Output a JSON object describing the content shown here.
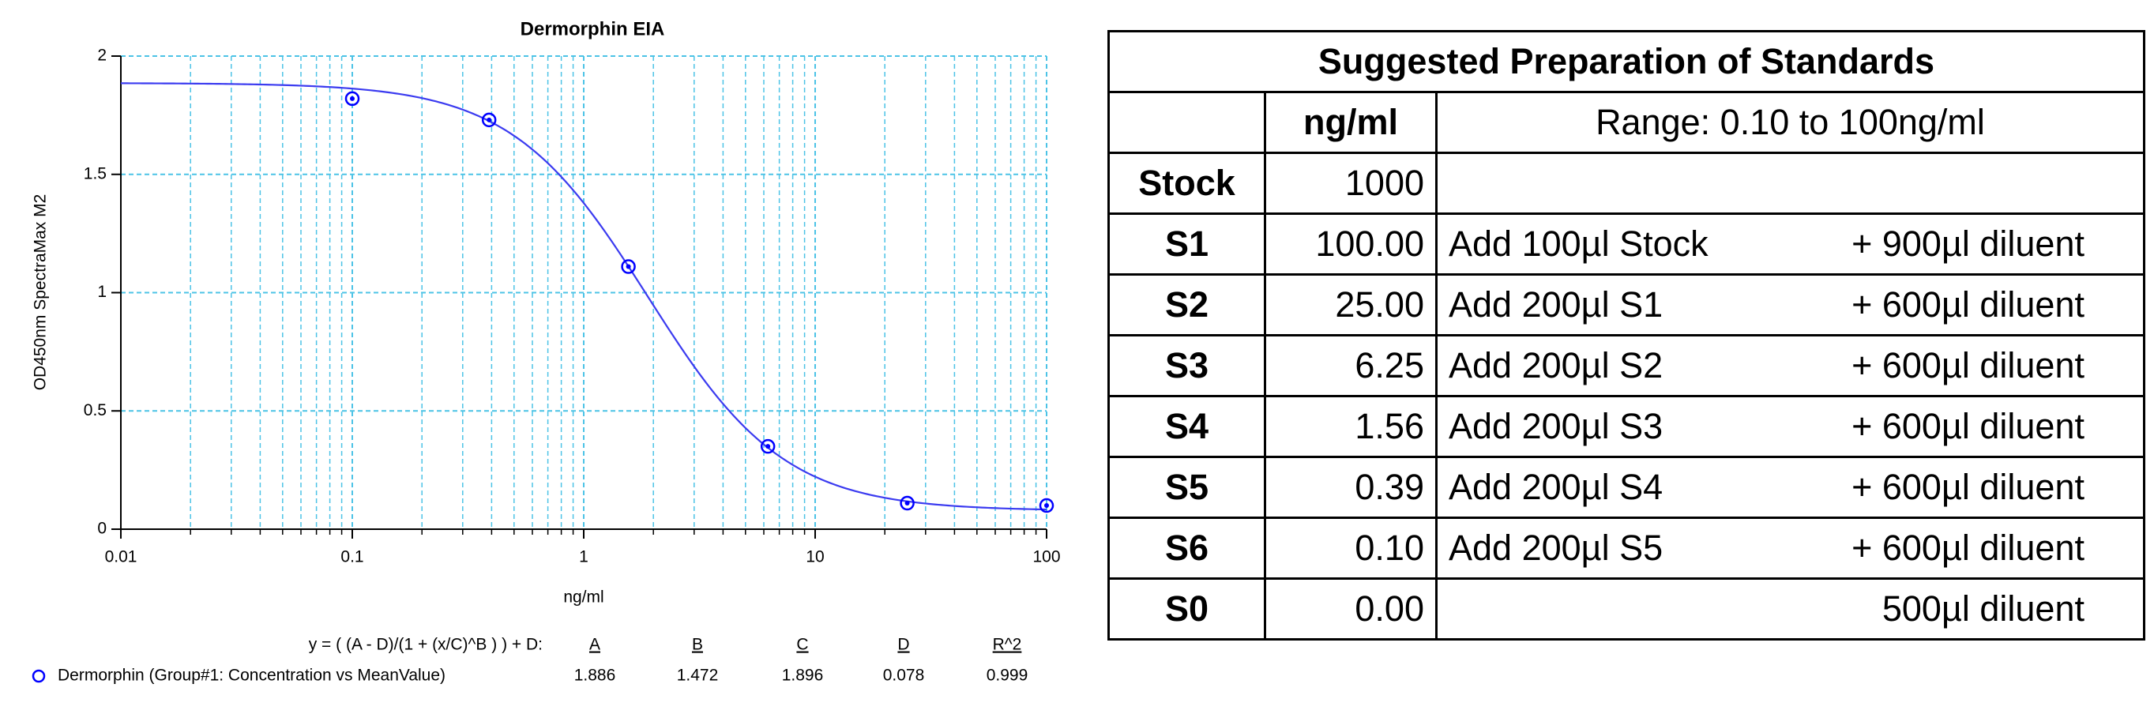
{
  "chart_data": {
    "type": "scatter",
    "title": "Dermorphin EIA",
    "xlabel": "ng/ml",
    "ylabel": "OD450nm SpectraMax M2",
    "xscale": "log",
    "xlim": [
      0.01,
      100
    ],
    "xticks": [
      0.01,
      0.1,
      1,
      10,
      100
    ],
    "xminorticks": [
      0.02,
      0.03,
      0.04,
      0.05,
      0.06,
      0.07,
      0.08,
      0.09,
      0.2,
      0.3,
      0.4,
      0.5,
      0.6,
      0.7,
      0.8,
      0.9,
      2,
      3,
      4,
      5,
      6,
      7,
      8,
      9,
      20,
      30,
      40,
      50,
      60,
      70,
      80,
      90
    ],
    "ylim": [
      0,
      2
    ],
    "yticks": [
      0,
      0.5,
      1,
      1.5,
      2
    ],
    "grid": true,
    "series": [
      {
        "name": "Dermorphin (Group#1: Concentration vs MeanValue)",
        "color": "#0000ff",
        "x": [
          0.1,
          0.39,
          1.56,
          6.25,
          25,
          100
        ],
        "values": [
          1.82,
          1.73,
          1.11,
          0.35,
          0.11,
          0.1
        ]
      }
    ],
    "fit": {
      "equation": "y = ( (A - D)/(1 + (x/C)^B ) ) + D:",
      "headers": [
        "A",
        "B",
        "C",
        "D",
        "R^2"
      ],
      "values": [
        1.886,
        1.472,
        1.896,
        0.078,
        0.999
      ],
      "color": "#3b3bf0"
    }
  },
  "table": {
    "title": "Suggested Preparation of Standards",
    "header": {
      "unit": "ng/ml",
      "range": "Range: 0.10 to 100ng/ml"
    },
    "rows": [
      {
        "name": "Stock",
        "conc": "1000"
      },
      {
        "name": "S1",
        "conc": "100.00",
        "step": "Add 100µl Stock",
        "diluent": "+ 900µl diluent"
      },
      {
        "name": "S2",
        "conc": "25.00",
        "step": "Add 200µl S1",
        "diluent": "+ 600µl diluent"
      },
      {
        "name": "S3",
        "conc": "6.25",
        "step": "Add 200µl S2",
        "diluent": "+ 600µl diluent"
      },
      {
        "name": "S4",
        "conc": "1.56",
        "step": "Add 200µl S3",
        "diluent": "+ 600µl diluent"
      },
      {
        "name": "S5",
        "conc": "0.39",
        "step": "Add 200µl S4",
        "diluent": "+ 600µl diluent"
      },
      {
        "name": "S6",
        "conc": "0.10",
        "step": "Add 200µl S5",
        "diluent": "+ 600µl diluent"
      },
      {
        "name": "S0",
        "conc": "0.00",
        "diluent": "500µl diluent"
      }
    ]
  }
}
